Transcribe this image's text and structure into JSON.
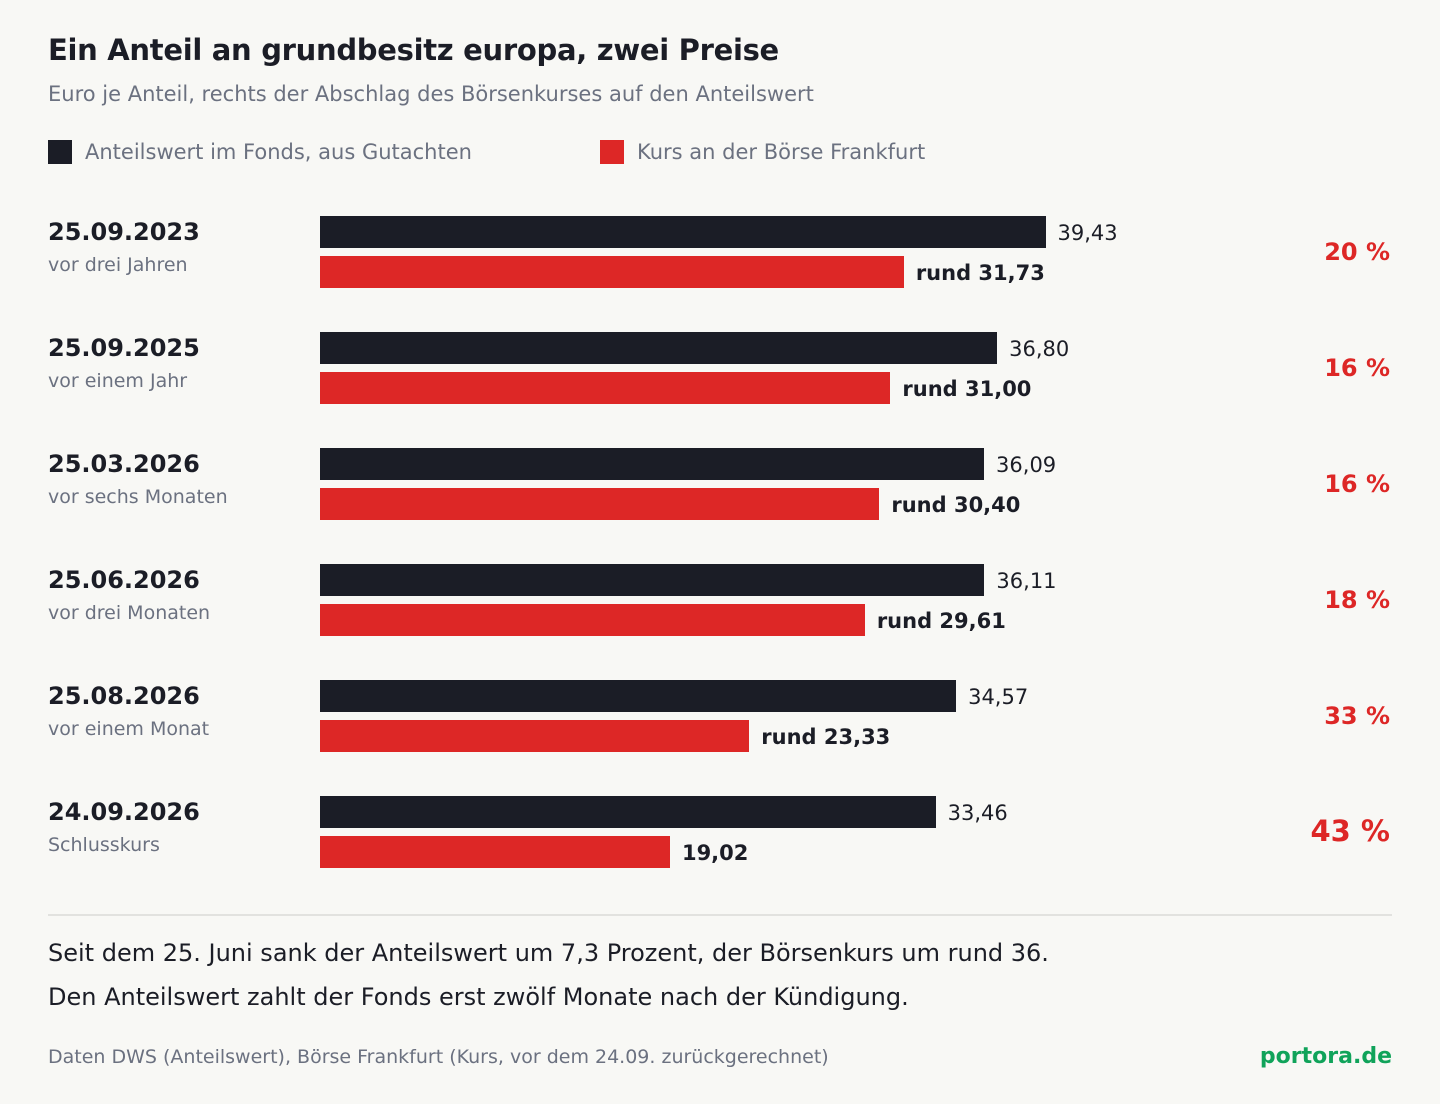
{
  "header": {
    "title": "Ein Anteil an grundbesitz europa, zwei Preise",
    "subtitle": "Euro je Anteil, rechts der Abschlag des Börsenkurses auf den Anteilswert"
  },
  "legend": [
    {
      "label": "Anteilswert im Fonds, aus Gutachten",
      "color": "#1b1d26"
    },
    {
      "label": "Kurs an der Börse Frankfurt",
      "color": "#dd2726"
    }
  ],
  "chart_data": {
    "type": "bar",
    "orientation": "horizontal",
    "title": "Ein Anteil an grundbesitz europa, zwei Preise",
    "subtitle": "Euro je Anteil, rechts der Abschlag des Börsenkurses auf den Anteilswert",
    "xlim": [
      0,
      45
    ],
    "grid": false,
    "legend_position": "top-left",
    "series": [
      {
        "name": "Anteilswert im Fonds, aus Gutachten",
        "color": "#1b1d26",
        "values": [
          39.43,
          36.8,
          36.09,
          36.11,
          34.57,
          33.46
        ]
      },
      {
        "name": "Kurs an der Börse Frankfurt",
        "color": "#dd2726",
        "values": [
          31.73,
          31.0,
          30.4,
          29.61,
          23.33,
          19.02
        ]
      }
    ],
    "categories": [
      "25.09.2023",
      "25.09.2025",
      "25.03.2026",
      "25.06.2026",
      "25.08.2026",
      "24.09.2026"
    ],
    "groups": [
      {
        "date": "25.09.2023",
        "period": "vor drei Jahren",
        "nav": 39.43,
        "nav_label": "39,43",
        "kurs": 31.73,
        "kurs_label": "rund 31,73",
        "discount_label": "20 %"
      },
      {
        "date": "25.09.2025",
        "period": "vor einem Jahr",
        "nav": 36.8,
        "nav_label": "36,80",
        "kurs": 31.0,
        "kurs_label": "rund 31,00",
        "discount_label": "16 %"
      },
      {
        "date": "25.03.2026",
        "period": "vor sechs Monaten",
        "nav": 36.09,
        "nav_label": "36,09",
        "kurs": 30.4,
        "kurs_label": "rund 30,40",
        "discount_label": "16 %"
      },
      {
        "date": "25.06.2026",
        "period": "vor drei Monaten",
        "nav": 36.11,
        "nav_label": "36,11",
        "kurs": 29.61,
        "kurs_label": "rund 29,61",
        "discount_label": "18 %"
      },
      {
        "date": "25.08.2026",
        "period": "vor einem Monat",
        "nav": 34.57,
        "nav_label": "34,57",
        "kurs": 23.33,
        "kurs_label": "rund 23,33",
        "discount_label": "33 %"
      },
      {
        "date": "24.09.2026",
        "period": "Schlusskurs",
        "nav": 33.46,
        "nav_label": "33,46",
        "kurs": 19.02,
        "kurs_label": "19,02",
        "discount_label": "43 %",
        "highlight": true
      }
    ]
  },
  "notes": {
    "line1": "Seit dem 25. Juni sank der Anteilswert um 7,3 Prozent, der Börsenkurs um rund 36.",
    "line2": "Den Anteilswert zahlt der Fonds erst zwölf Monate nach der Kündigung."
  },
  "footer": {
    "source": "Daten DWS (Anteilswert), Börse Frankfurt (Kurs, vor dem 24.09. zurückgerechnet)",
    "brand": "portora.de"
  }
}
